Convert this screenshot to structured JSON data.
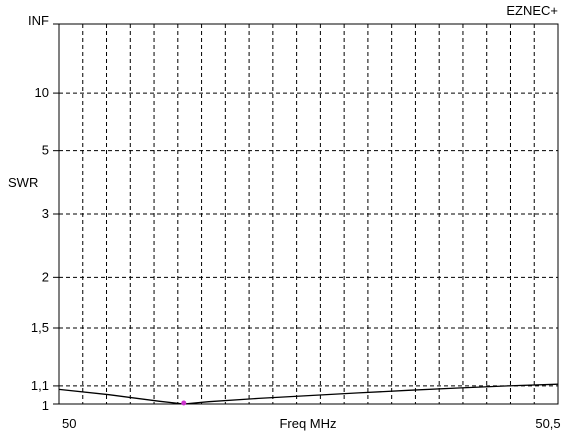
{
  "app_label": "EZNEC+",
  "chart_data": {
    "type": "line",
    "title": "",
    "xlabel": "Freq MHz",
    "ylabel": "SWR",
    "y_scale": "reflection (SWR mapped by reflection coefficient, INF at top)",
    "xlim": [
      50,
      50.5
    ],
    "ylim": [
      1,
      "INF"
    ],
    "x_tick_labels": [
      {
        "value": 50,
        "label": "50"
      },
      {
        "value": 50.5,
        "label": "50,5"
      }
    ],
    "y_ticks": [
      {
        "value": "INF",
        "label": "INF"
      },
      {
        "value": 10,
        "label": "10"
      },
      {
        "value": 5,
        "label": "5"
      },
      {
        "value": 3,
        "label": "3"
      },
      {
        "value": 2,
        "label": "2"
      },
      {
        "value": 1.5,
        "label": "1,5"
      },
      {
        "value": 1.1,
        "label": "1,1"
      },
      {
        "value": 1,
        "label": "1"
      }
    ],
    "vertical_gridlines": 21,
    "grid": true,
    "series": [
      {
        "x": [
          50.0,
          50.05,
          50.1,
          50.125,
          50.15,
          50.2,
          50.25,
          50.3,
          50.35,
          50.4,
          50.45,
          50.5
        ],
        "y": [
          1.08,
          1.05,
          1.015,
          1.0,
          1.012,
          1.03,
          1.045,
          1.06,
          1.075,
          1.088,
          1.1,
          1.11
        ]
      }
    ],
    "marker": {
      "x": 50.125,
      "y": 1.0,
      "color": "#cc33cc"
    },
    "colors": {
      "line": "#000000",
      "grid": "#000000",
      "marker": "#cc33cc"
    }
  }
}
